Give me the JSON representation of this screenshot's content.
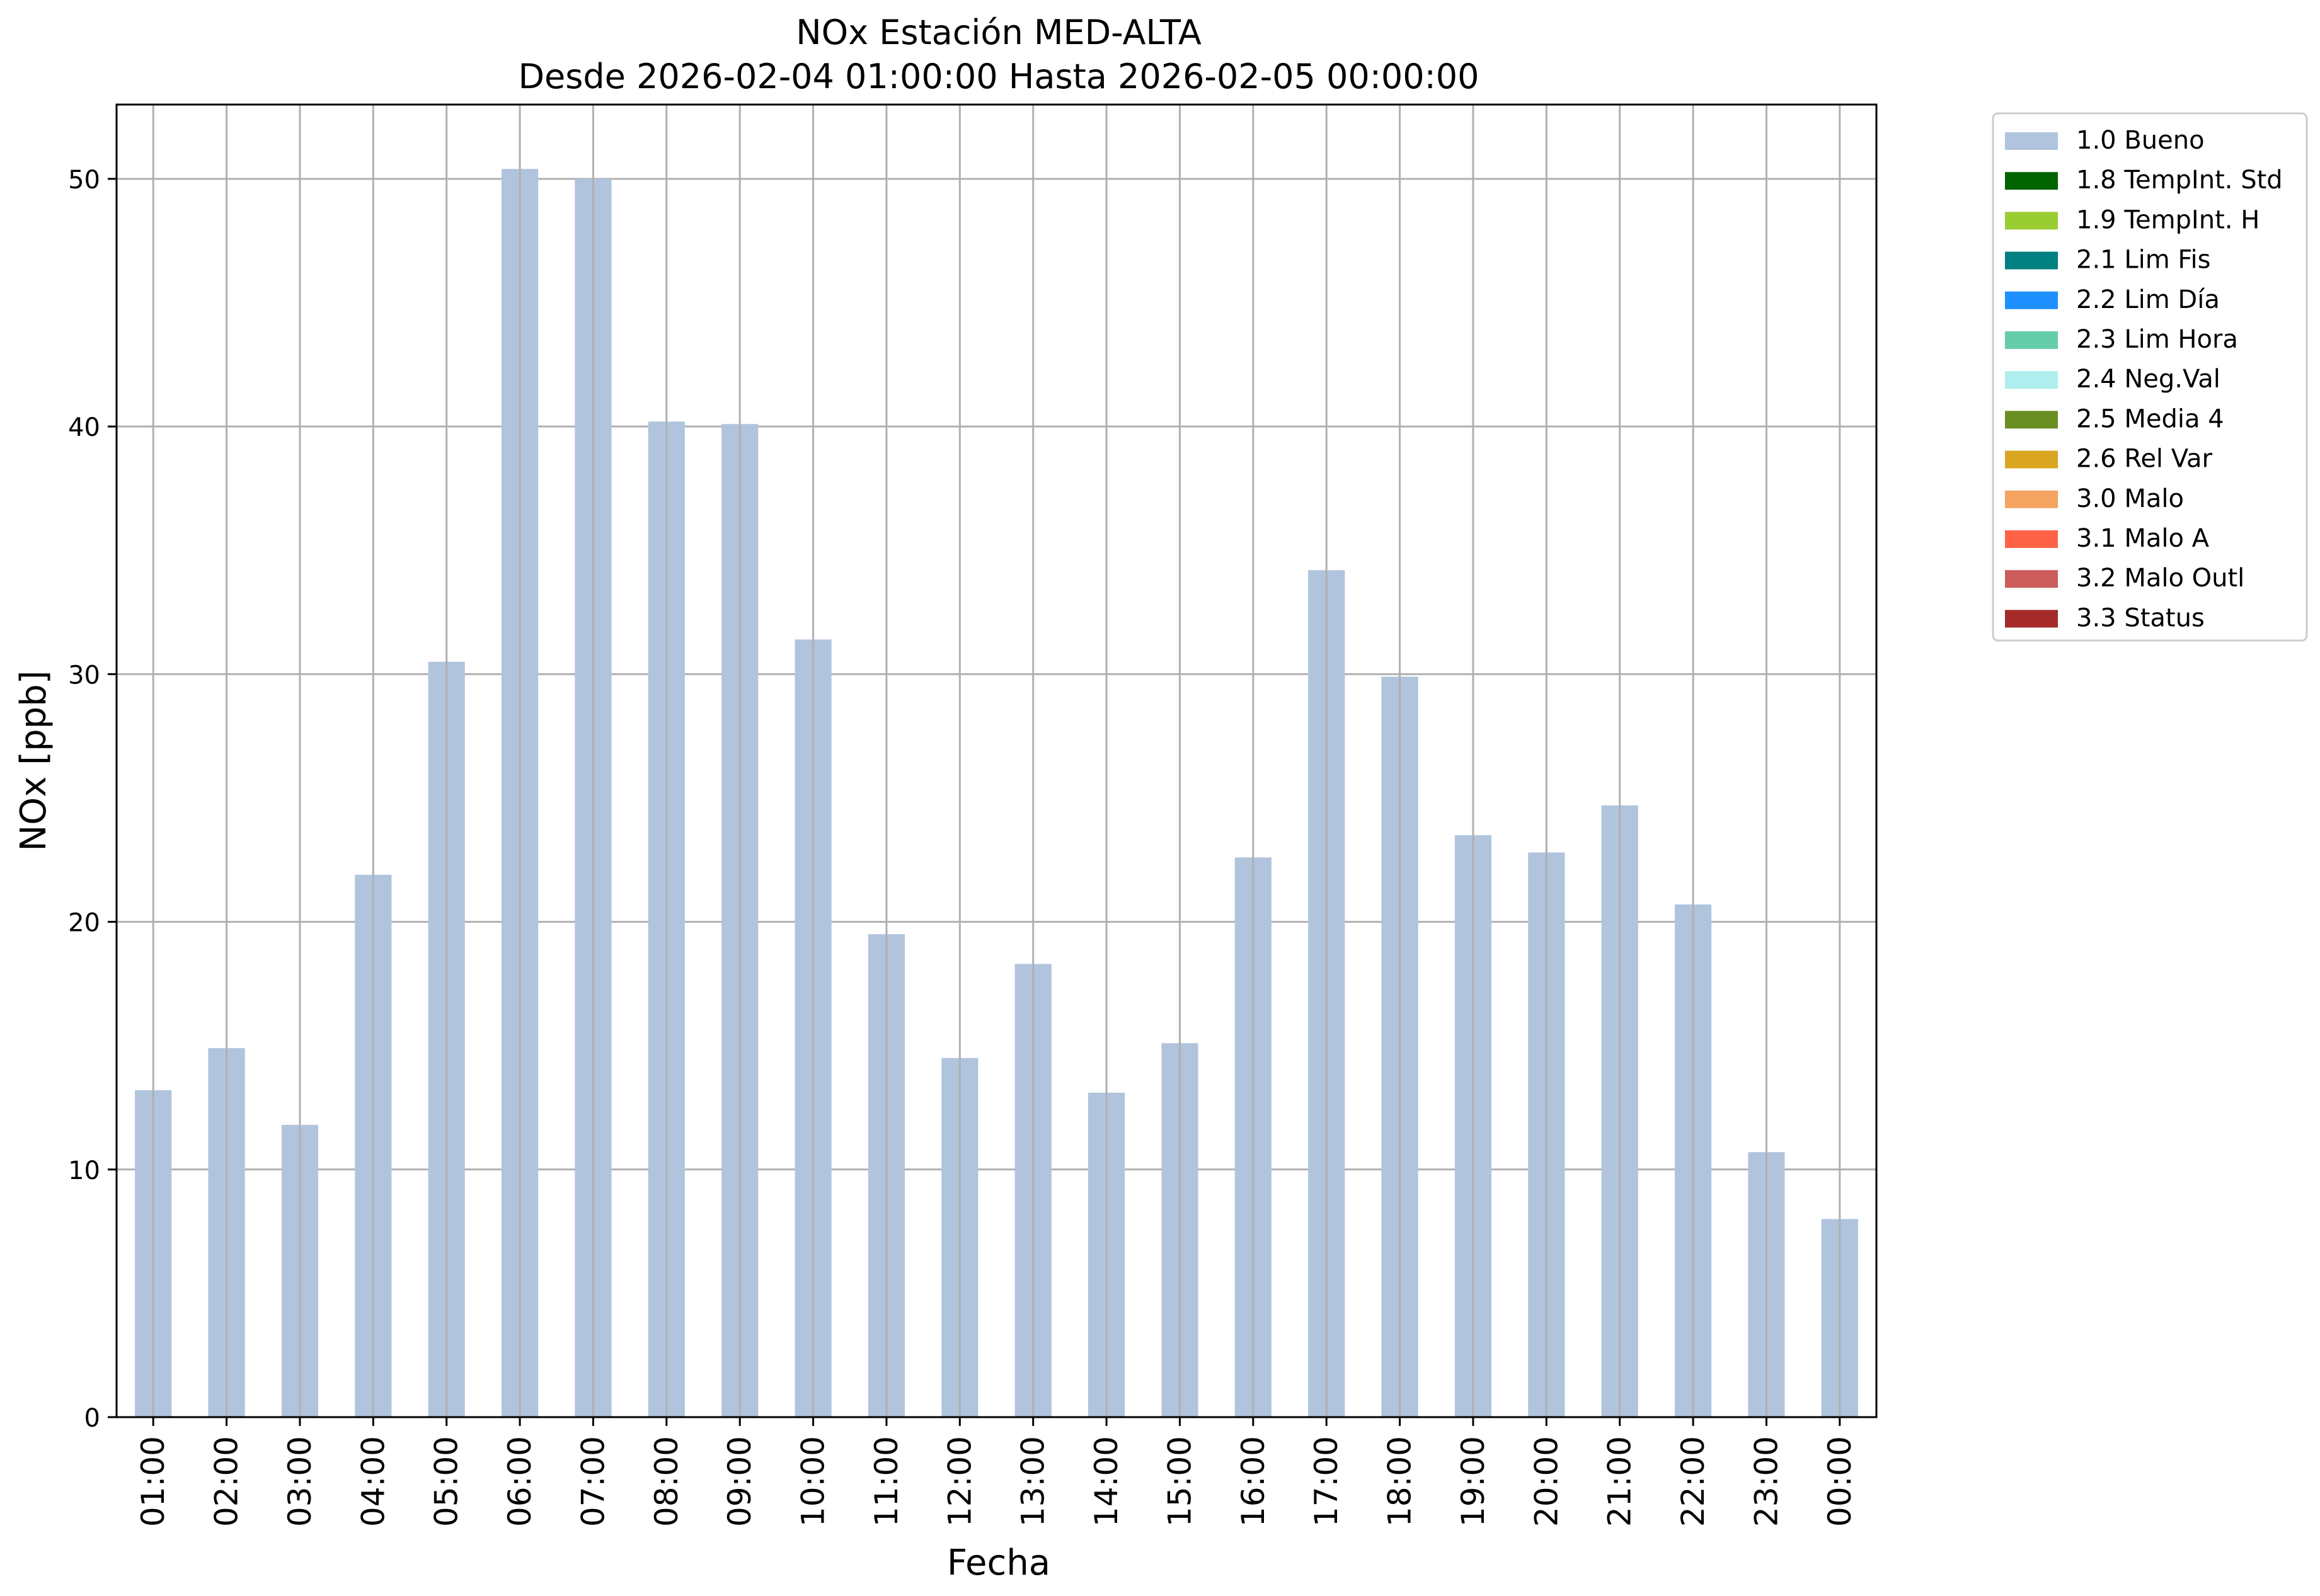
{
  "chart_data": {
    "type": "bar",
    "title": "NOx Estación MED-ALTA",
    "subtitle": "Desde 2026-02-04 01:00:00 Hasta 2026-02-05 00:00:00",
    "xlabel": "Fecha",
    "ylabel": "NOx [ppb]",
    "ylim": [
      0,
      53
    ],
    "yticks": [
      0,
      10,
      20,
      30,
      40,
      50
    ],
    "grid": true,
    "legend_position": "outside-top-right",
    "categories": [
      "01:00",
      "02:00",
      "03:00",
      "04:00",
      "05:00",
      "06:00",
      "07:00",
      "08:00",
      "09:00",
      "10:00",
      "11:00",
      "12:00",
      "13:00",
      "14:00",
      "15:00",
      "16:00",
      "17:00",
      "18:00",
      "19:00",
      "20:00",
      "21:00",
      "22:00",
      "23:00",
      "00:00"
    ],
    "series": [
      {
        "name": "1.0 Bueno",
        "color": "#b0c4de",
        "values": [
          13.2,
          14.9,
          11.8,
          21.9,
          30.5,
          50.4,
          50.0,
          40.2,
          40.1,
          31.4,
          19.5,
          14.5,
          18.3,
          13.1,
          15.1,
          22.6,
          34.2,
          29.9,
          23.5,
          22.8,
          24.7,
          20.7,
          10.7,
          8.0
        ]
      }
    ],
    "legend": [
      {
        "label": "1.0 Bueno",
        "color": "#b0c4de"
      },
      {
        "label": "1.8 TempInt. Std",
        "color": "#006400"
      },
      {
        "label": "1.9 TempInt. H",
        "color": "#9acd32"
      },
      {
        "label": "2.1 Lim Fis",
        "color": "#008080"
      },
      {
        "label": "2.2 Lim Día",
        "color": "#1e90ff"
      },
      {
        "label": "2.3 Lim Hora",
        "color": "#66cdaa"
      },
      {
        "label": "2.4 Neg.Val",
        "color": "#afeeee"
      },
      {
        "label": "2.5 Media 4",
        "color": "#6b8e23"
      },
      {
        "label": "2.6 Rel Var",
        "color": "#daa520"
      },
      {
        "label": "3.0 Malo",
        "color": "#f4a460"
      },
      {
        "label": "3.1 Malo A",
        "color": "#ff6347"
      },
      {
        "label": "3.2 Malo Outl",
        "color": "#cd5c5c"
      },
      {
        "label": "3.3 Status",
        "color": "#a52a2a"
      }
    ]
  }
}
